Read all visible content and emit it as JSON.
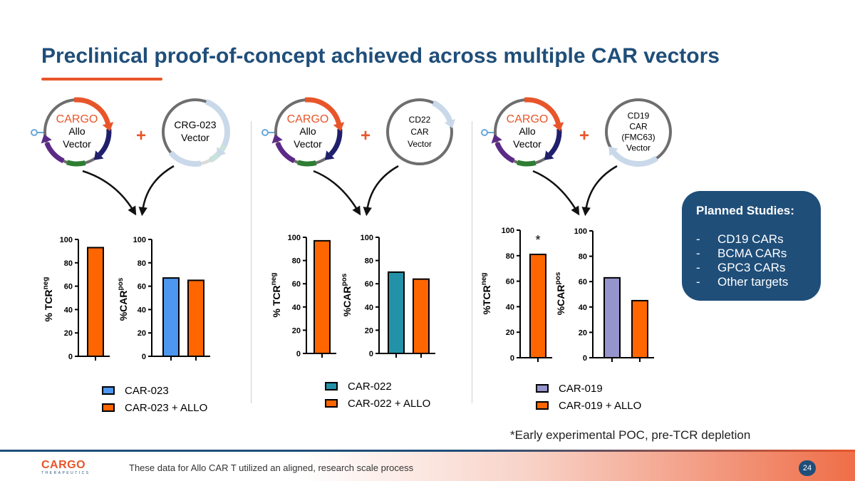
{
  "title": "Preclinical proof-of-concept achieved across multiple CAR vectors",
  "colors": {
    "navy": "#1f4e79",
    "orange": "#e8552a",
    "bar_allo": "#ff6600",
    "blue": "#4d97f0",
    "teal": "#2392a8",
    "lavender": "#9694cc"
  },
  "panels": [
    {
      "allo": {
        "brand": "CARGO",
        "line1": "Allo",
        "line2": "Vector"
      },
      "plus": "+",
      "car_vector": {
        "lines": [
          "CRG-023",
          "Vector"
        ]
      },
      "legend": [
        {
          "label": "CAR-023",
          "color": "#4d97f0"
        },
        {
          "label": "CAR-023 + ALLO",
          "color": "#ff6600"
        }
      ]
    },
    {
      "allo": {
        "brand": "CARGO",
        "line1": "Allo",
        "line2": "Vector"
      },
      "plus": "+",
      "car_vector": {
        "lines": [
          "CD22",
          "CAR",
          "Vector"
        ]
      },
      "legend": [
        {
          "label": "CAR-022",
          "color": "#2392a8"
        },
        {
          "label": "CAR-022 + ALLO",
          "color": "#ff6600"
        }
      ]
    },
    {
      "allo": {
        "brand": "CARGO",
        "line1": "Allo",
        "line2": "Vector"
      },
      "plus": "+",
      "car_vector": {
        "lines": [
          "CD19",
          "CAR",
          "(FMC63)",
          "Vector"
        ]
      },
      "legend": [
        {
          "label": "CAR-019",
          "color": "#9694cc"
        },
        {
          "label": "CAR-019 + ALLO",
          "color": "#ff6600"
        }
      ]
    }
  ],
  "chart_data": [
    {
      "type": "bar",
      "panel": 1,
      "ylabel": "% TCR",
      "ylabel_sup": "neg",
      "ylim": [
        0,
        100
      ],
      "yticks": [
        "0",
        "20",
        "40",
        "60",
        "80",
        "100"
      ],
      "series": [
        {
          "name": "CAR-023 + ALLO",
          "values": [
            93
          ],
          "color": "#ff6600"
        }
      ],
      "annotation": ""
    },
    {
      "type": "bar",
      "panel": 1,
      "ylabel": "%CAR",
      "ylabel_sup": "pos",
      "ylim": [
        0,
        100
      ],
      "yticks": [
        "0",
        "20",
        "40",
        "60",
        "80",
        "100"
      ],
      "series": [
        {
          "name": "CAR-023",
          "values": [
            67
          ],
          "color": "#4d97f0"
        },
        {
          "name": "CAR-023 + ALLO",
          "values": [
            65
          ],
          "color": "#ff6600"
        }
      ],
      "annotation": ""
    },
    {
      "type": "bar",
      "panel": 2,
      "ylabel": "% TCR",
      "ylabel_sup": "neg",
      "ylim": [
        0,
        100
      ],
      "yticks": [
        "0",
        "20",
        "40",
        "60",
        "80",
        "100"
      ],
      "series": [
        {
          "name": "CAR-022 + ALLO",
          "values": [
            97
          ],
          "color": "#ff6600"
        }
      ],
      "annotation": ""
    },
    {
      "type": "bar",
      "panel": 2,
      "ylabel": "%CAR",
      "ylabel_sup": "pos",
      "ylim": [
        0,
        100
      ],
      "yticks": [
        "0",
        "20",
        "40",
        "60",
        "80",
        "100"
      ],
      "series": [
        {
          "name": "CAR-022",
          "values": [
            70
          ],
          "color": "#2392a8"
        },
        {
          "name": "CAR-022 + ALLO",
          "values": [
            64
          ],
          "color": "#ff6600"
        }
      ],
      "annotation": ""
    },
    {
      "type": "bar",
      "panel": 3,
      "ylabel": "%TCR",
      "ylabel_sup": "neg",
      "ylim": [
        0,
        100
      ],
      "yticks": [
        "0",
        "20",
        "40",
        "60",
        "80",
        "100"
      ],
      "series": [
        {
          "name": "CAR-019 + ALLO",
          "values": [
            81
          ],
          "color": "#ff6600"
        }
      ],
      "annotation": "*"
    },
    {
      "type": "bar",
      "panel": 3,
      "ylabel": "%CAR",
      "ylabel_sup": "pos",
      "ylim": [
        0,
        100
      ],
      "yticks": [
        "0",
        "20",
        "40",
        "60",
        "80",
        "100"
      ],
      "series": [
        {
          "name": "CAR-019",
          "values": [
            63
          ],
          "color": "#9694cc"
        },
        {
          "name": "CAR-019 + ALLO",
          "values": [
            45
          ],
          "color": "#ff6600"
        }
      ],
      "annotation": ""
    }
  ],
  "planned": {
    "title": "Planned Studies:",
    "items": [
      {
        "dash": "-",
        "text": "CD19 CARs"
      },
      {
        "dash": "-",
        "text": "BCMA CARs"
      },
      {
        "dash": "-",
        "text": "GPC3 CARs"
      },
      {
        "dash": "-",
        "text": "Other targets"
      }
    ]
  },
  "footnote": "*Early experimental POC, pre-TCR depletion",
  "footer": {
    "logo_main": "CARGO",
    "logo_sub": "THERAPEUTICS",
    "text": "These data for Allo CAR T utilized an aligned, research scale process",
    "page": "24"
  }
}
